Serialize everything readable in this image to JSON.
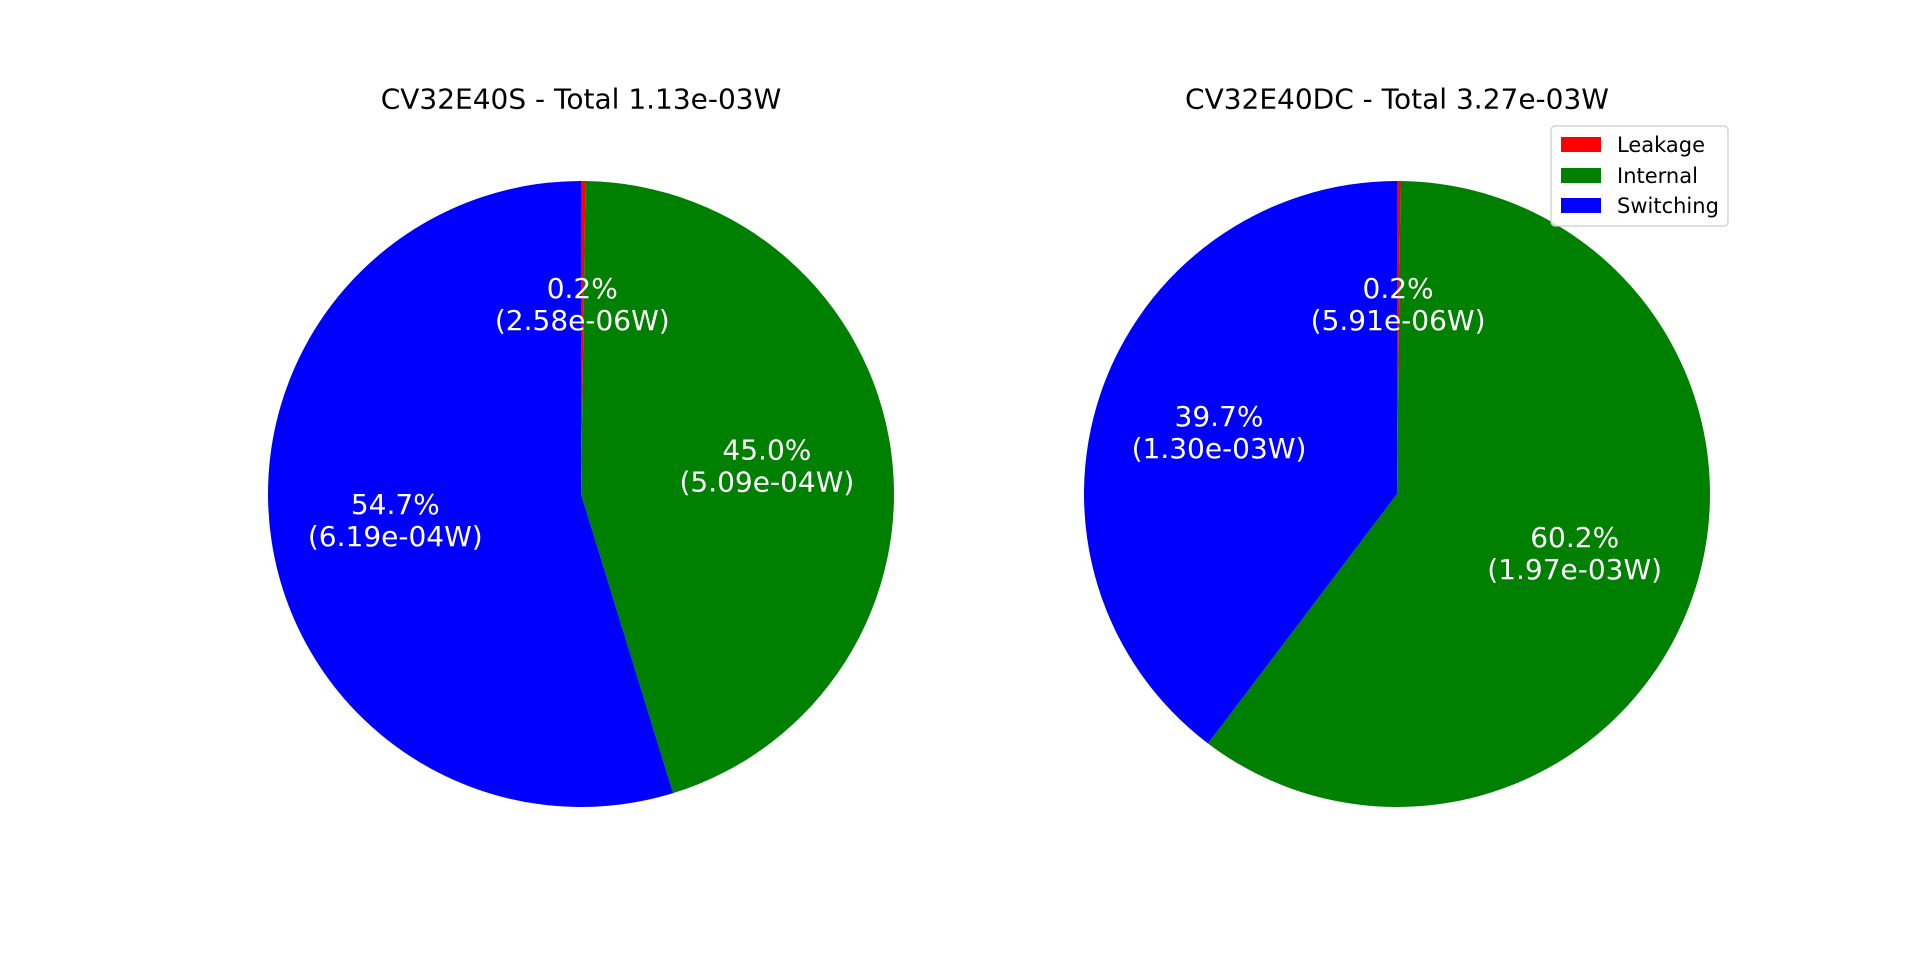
{
  "chart_data": [
    {
      "type": "pie",
      "title": "CV32E40S - Total 1.13e-03W",
      "start_angle_deg": 90,
      "direction": "clockwise",
      "slices": [
        {
          "name": "Leakage",
          "value": 2.58e-06,
          "percent_label": "0.2%",
          "value_label": "(2.58e-06W)",
          "color": "#ff0000"
        },
        {
          "name": "Internal",
          "value": 0.000509,
          "percent_label": "45.0%",
          "value_label": "(5.09e-04W)",
          "color": "#008000"
        },
        {
          "name": "Switching",
          "value": 0.000619,
          "percent_label": "54.7%",
          "value_label": "(6.19e-04W)",
          "color": "#0000ff"
        }
      ]
    },
    {
      "type": "pie",
      "title": "CV32E40DC - Total 3.27e-03W",
      "start_angle_deg": 90,
      "direction": "clockwise",
      "slices": [
        {
          "name": "Leakage",
          "value": 5.91e-06,
          "percent_label": "0.2%",
          "value_label": "(5.91e-06W)",
          "color": "#ff0000"
        },
        {
          "name": "Internal",
          "value": 0.00197,
          "percent_label": "60.2%",
          "value_label": "(1.97e-03W)",
          "color": "#008000"
        },
        {
          "name": "Switching",
          "value": 0.0013,
          "percent_label": "39.7%",
          "value_label": "(1.30e-03W)",
          "color": "#0000ff"
        }
      ],
      "legend": {
        "placement": "upper-right",
        "entries": [
          {
            "label": "Leakage",
            "color": "#ff0000"
          },
          {
            "label": "Internal",
            "color": "#008000"
          },
          {
            "label": "Switching",
            "color": "#0000ff"
          }
        ]
      }
    }
  ]
}
